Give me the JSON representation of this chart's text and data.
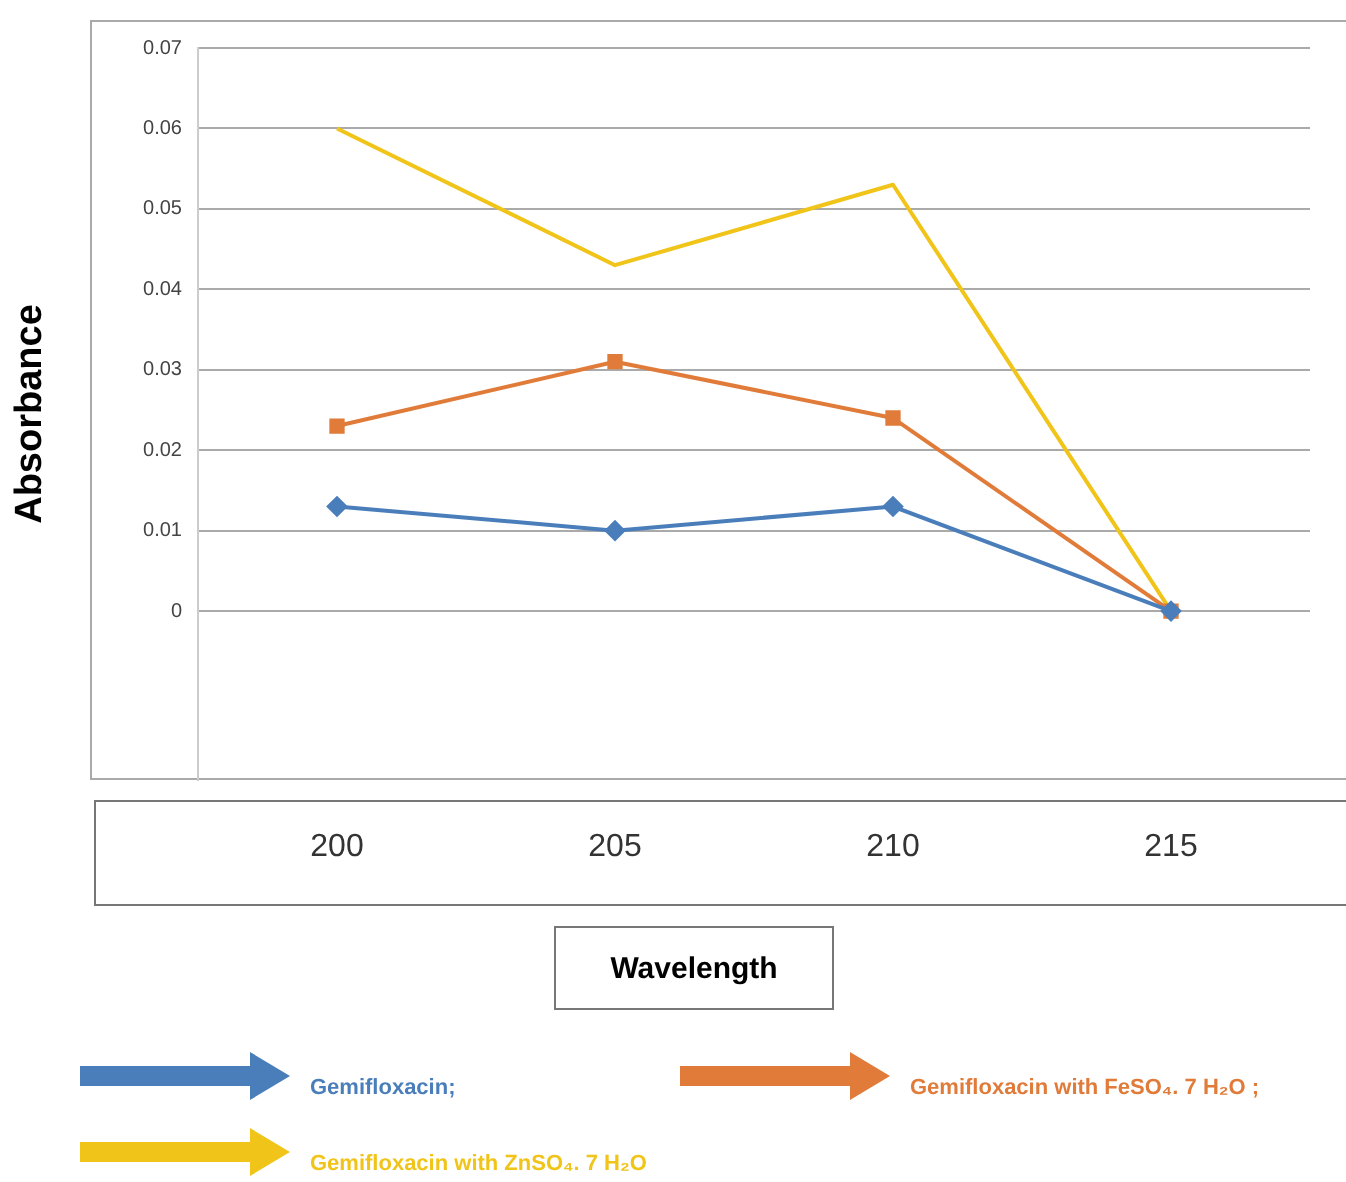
{
  "chart_data": {
    "type": "line",
    "xlabel": "Wavelength",
    "ylabel": "Absorbance",
    "categories": [
      "200",
      "205",
      "210",
      "215"
    ],
    "series": [
      {
        "name": "Gemifloxacin;",
        "color": "#4a7ebb",
        "marker": "diamond",
        "values": [
          0.013,
          0.01,
          0.013,
          0
        ]
      },
      {
        "name": "Gemifloxacin with FeSO₄. 7 H₂O ;",
        "color": "#e07b39",
        "marker": "square",
        "values": [
          0.023,
          0.031,
          0.024,
          0
        ]
      },
      {
        "name": "Gemifloxacin with  ZnSO₄. 7 H₂O",
        "color": "#f0c419",
        "marker": "none",
        "values": [
          0.06,
          0.043,
          0.053,
          0
        ]
      }
    ],
    "ylim": [
      -0.021,
      0.07
    ],
    "yticks": [
      0,
      0.01,
      0.02,
      0.03,
      0.04,
      0.05,
      0.06,
      0.07
    ],
    "grid": "y",
    "legend": "bottom"
  }
}
